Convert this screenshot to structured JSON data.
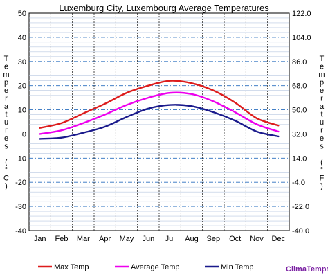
{
  "chart_data": {
    "type": "line",
    "title": "Luxemburg City, Luxembourg Average Temperatures",
    "categories": [
      "Jan",
      "Feb",
      "Mar",
      "Apr",
      "May",
      "Jun",
      "Jul",
      "Aug",
      "Sep",
      "Oct",
      "Nov",
      "Dec"
    ],
    "series": [
      {
        "name": "Max Temp",
        "color": "#dd1c1c",
        "values": [
          2.5,
          4.5,
          8.5,
          12.5,
          17.0,
          20.0,
          22.0,
          21.0,
          18.0,
          13.0,
          6.5,
          3.5
        ]
      },
      {
        "name": "Average Temp",
        "color": "#ee00ee",
        "values": [
          0.0,
          1.5,
          4.5,
          8.0,
          12.0,
          15.0,
          17.0,
          16.5,
          13.5,
          9.0,
          4.0,
          1.0
        ]
      },
      {
        "name": "Min Temp",
        "color": "#1a1a8c",
        "values": [
          -2.0,
          -1.5,
          0.5,
          3.0,
          7.0,
          10.5,
          12.0,
          11.5,
          9.0,
          5.5,
          1.0,
          -1.0
        ]
      }
    ],
    "ylim": [
      -40,
      50
    ],
    "yticks_c": [
      "50",
      "40",
      "30",
      "20",
      "10",
      "0",
      "-10",
      "-20",
      "-30",
      "-40"
    ],
    "yticks_f": [
      "122.0",
      "104.0",
      "86.0",
      "68.0",
      "50.0",
      "32.0",
      "14.0",
      "-4.0",
      "-22.0",
      "-40.0"
    ],
    "ylabel_left": "Temperatures (°C)",
    "ylabel_right": "Temperatures (°F)",
    "grid": true,
    "legend_position": "bottom"
  },
  "branding": {
    "label": "ClimaTemps",
    "color": "#7a1fa2"
  },
  "colors": {
    "grid_minor": "#b8c8e0",
    "grid_major": "#2a6fbf",
    "month_lines": "#222222",
    "plot_bg": "#ffffff"
  }
}
